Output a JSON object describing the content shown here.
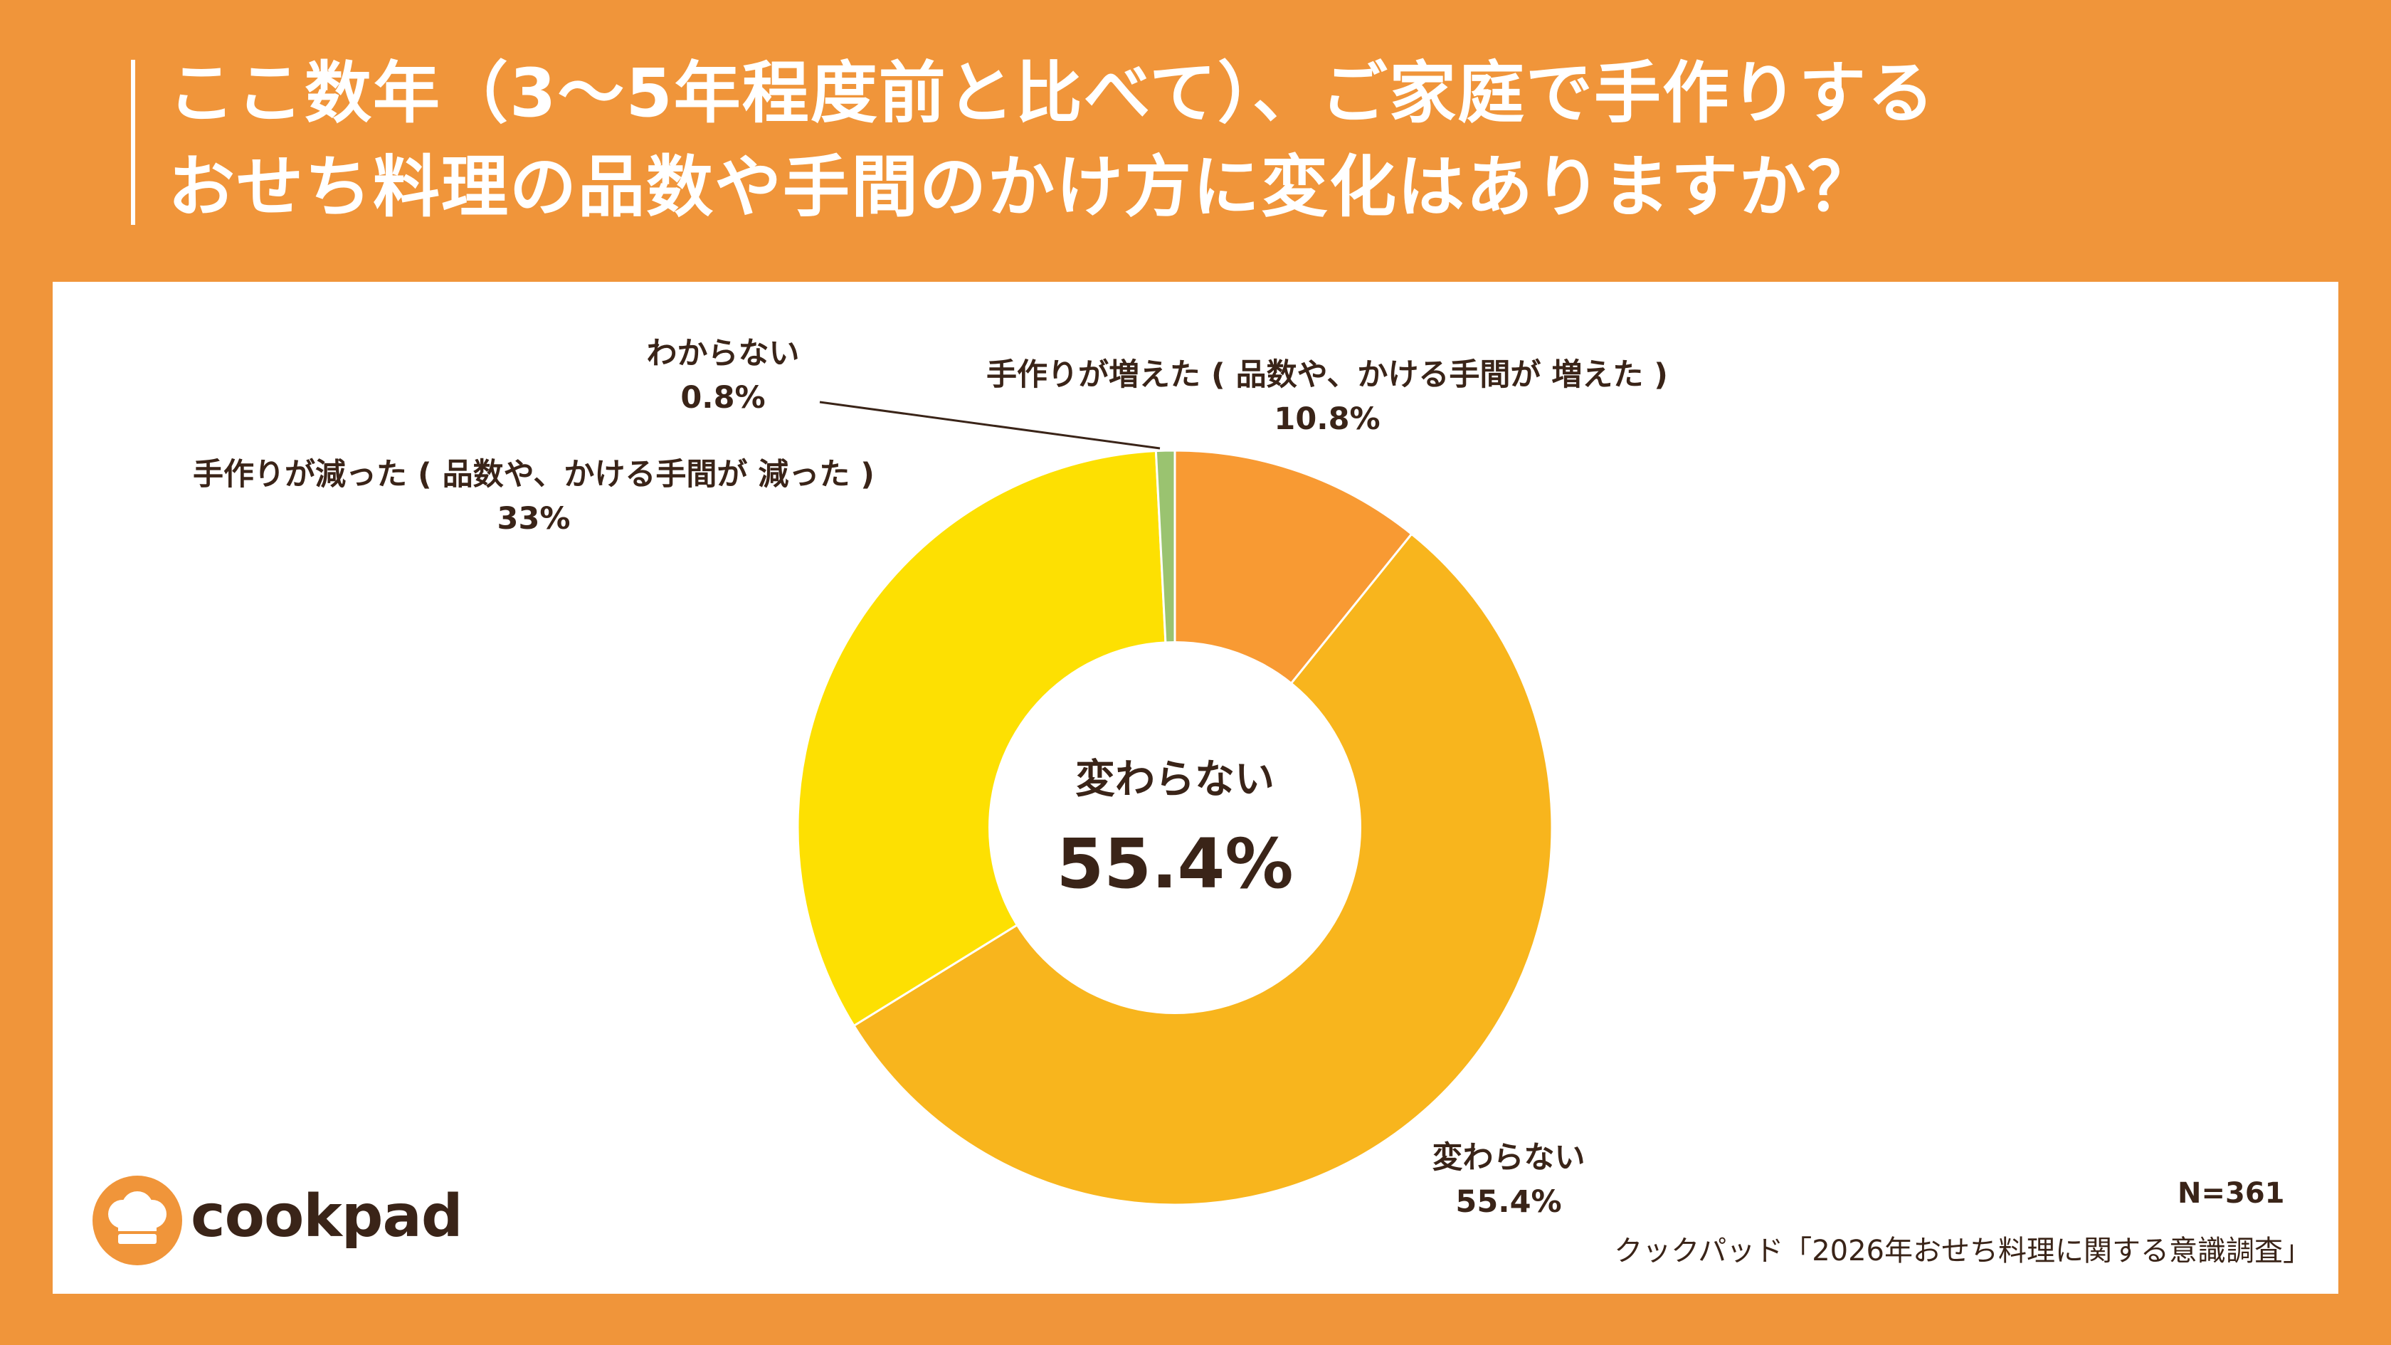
{
  "title": {
    "line1": "ここ数年（3～5年程度前と比べて）、ご家庭で手作りする",
    "line2": "おせち料理の品数や手間のかけ方に変化はありますか？"
  },
  "center": {
    "label": "変わらない",
    "value": "55.4%"
  },
  "labels": {
    "increase": {
      "name": "手作りが増えた ( 品数や、かける手間が 増えた )",
      "pct": "10.8%"
    },
    "same": {
      "name": "変わらない",
      "pct": "55.4%"
    },
    "decrease": {
      "name": "手作りが減った ( 品数や、かける手間が 減った )",
      "pct": "33%"
    },
    "unknown": {
      "name": "わからない",
      "pct": "0.8%"
    }
  },
  "footer": {
    "n": "N=361",
    "source": "クックパッド「2026年おせち料理に関する意識調査」",
    "logo": "cookpad"
  },
  "colors": {
    "background": "#f0953a",
    "increase": "#f89a33",
    "same": "#f8b51d",
    "decrease": "#fde002",
    "unknown": "#9ac370",
    "text": "#3a2418"
  },
  "chart_data": {
    "type": "pie",
    "donut": true,
    "categories": [
      "手作りが増えた ( 品数や、かける手間が 増えた )",
      "変わらない",
      "手作りが減った ( 品数や、かける手間が 減った )",
      "わからない"
    ],
    "values": [
      10.8,
      55.4,
      33,
      0.8
    ],
    "unit": "%",
    "start": "top, clockwise",
    "legend": "none (direct labels)"
  }
}
